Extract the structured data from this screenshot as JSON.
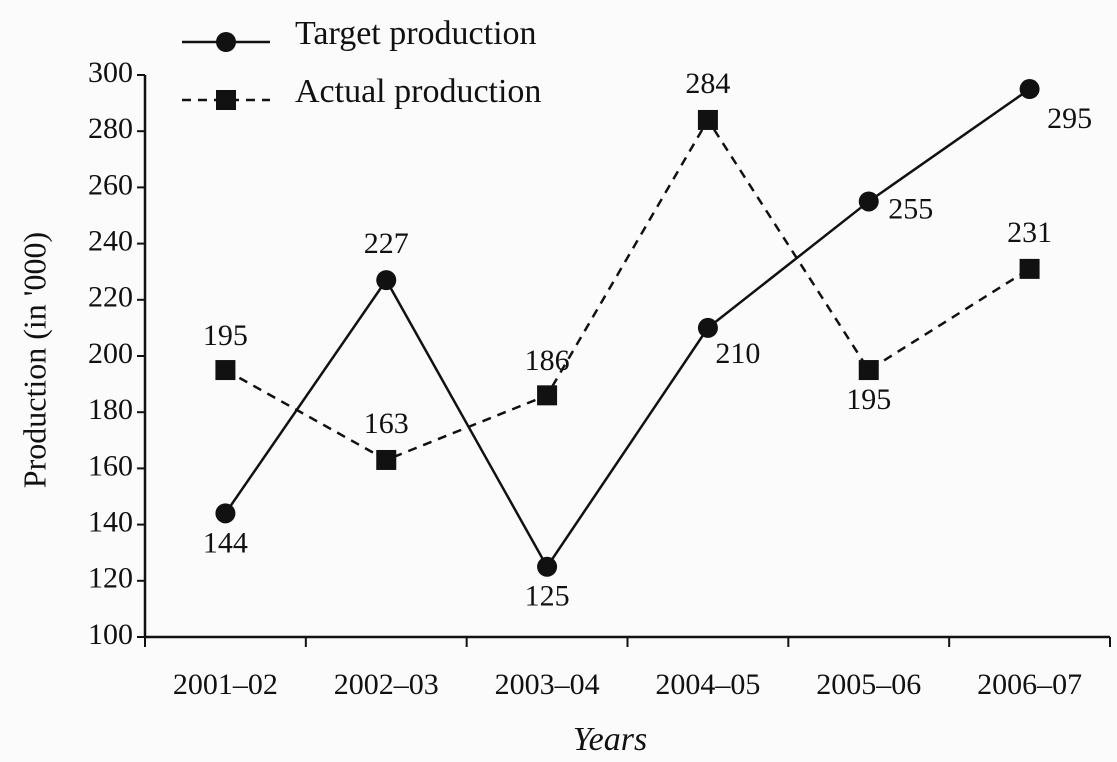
{
  "chart_data": {
    "type": "line",
    "x_label": "Years",
    "y_label": "Production (in '000)",
    "categories": [
      "2001–02",
      "2002–03",
      "2003–04",
      "2004–05",
      "2005–06",
      "2006–07"
    ],
    "series": [
      {
        "name": "Target production",
        "color": "#111111",
        "marker": "circle",
        "dash": "solid",
        "values": [
          144,
          227,
          125,
          210,
          255,
          295
        ]
      },
      {
        "name": "Actual production",
        "color": "#111111",
        "marker": "square",
        "dash": "dashed",
        "values": [
          195,
          163,
          186,
          284,
          195,
          231
        ]
      }
    ],
    "ylim": [
      100,
      300
    ],
    "yticks": [
      100,
      120,
      140,
      160,
      180,
      200,
      220,
      240,
      260,
      280,
      300
    ],
    "grid": false,
    "legend": "top"
  }
}
